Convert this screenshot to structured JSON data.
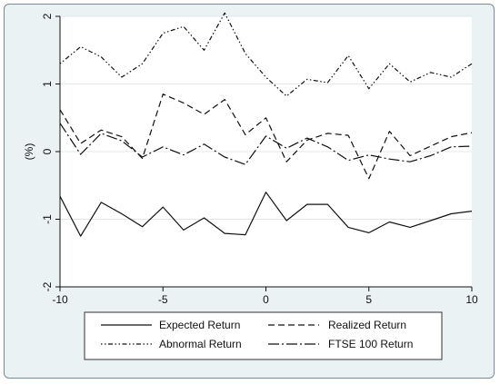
{
  "chart_data": {
    "type": "line",
    "title": "",
    "xlabel": "",
    "ylabel": "(%)",
    "xlim": [
      -10,
      10
    ],
    "ylim": [
      -2,
      2
    ],
    "x_ticks": [
      "-10",
      "-5",
      "0",
      "5",
      "10"
    ],
    "y_ticks": [
      "2",
      "1",
      "0",
      "-1",
      "-2"
    ],
    "grid": true,
    "legend_position": "bottom",
    "x": [
      -10,
      -9,
      -8,
      -7,
      -6,
      -5,
      -4,
      -3,
      -2,
      -1,
      0,
      1,
      2,
      3,
      4,
      5,
      6,
      7,
      8,
      9,
      10
    ],
    "series": [
      {
        "name": "Expected Return",
        "style": "solid",
        "values": [
          -0.66,
          -1.25,
          -0.75,
          -0.92,
          -1.11,
          -0.82,
          -1.16,
          -0.98,
          -1.21,
          -1.23,
          -0.6,
          -1.02,
          -0.78,
          -0.78,
          -1.12,
          -1.2,
          -1.04,
          -1.12,
          -1.02,
          -0.92,
          -0.88
        ]
      },
      {
        "name": "Realized Return",
        "style": "dashed",
        "values": [
          0.62,
          0.12,
          0.32,
          0.22,
          -0.1,
          0.85,
          0.72,
          0.55,
          0.77,
          0.25,
          0.5,
          -0.15,
          0.17,
          0.27,
          0.24,
          -0.4,
          0.3,
          -0.06,
          0.08,
          0.22,
          0.28
        ]
      },
      {
        "name": "Abnormal Return",
        "style": "dash-dot",
        "values": [
          1.3,
          1.55,
          1.4,
          1.1,
          1.3,
          1.75,
          1.85,
          1.5,
          2.05,
          1.45,
          1.1,
          0.82,
          1.07,
          1.02,
          1.42,
          0.93,
          1.3,
          1.03,
          1.17,
          1.1,
          1.3
        ]
      },
      {
        "name": "FTSE 100 Return",
        "style": "long-dash",
        "values": [
          0.42,
          -0.04,
          0.27,
          0.16,
          -0.08,
          0.07,
          -0.05,
          0.11,
          -0.08,
          -0.19,
          0.23,
          0.05,
          0.2,
          0.07,
          -0.13,
          -0.05,
          -0.11,
          -0.15,
          -0.06,
          0.07,
          0.08
        ]
      }
    ]
  }
}
